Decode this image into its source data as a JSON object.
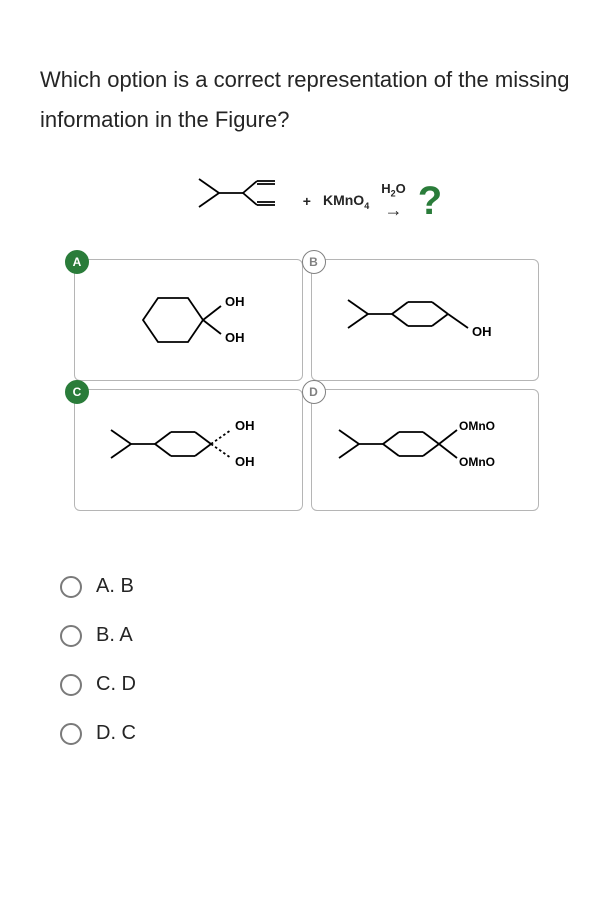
{
  "question": "Which option is a correct representation of the missing information in the Figure?",
  "reaction": {
    "plus": "+",
    "reagent_html": "KMnO<sub>4</sub>",
    "condition_html": "H<sub>2</sub>O",
    "arrow": "→",
    "unknown_mark": "?"
  },
  "options": {
    "A": {
      "letter": "A",
      "selected": true,
      "labels": {
        "top": "OH",
        "bottom": "OH"
      }
    },
    "B": {
      "letter": "B",
      "selected": false,
      "labels": {
        "top": "",
        "bottom": "OH"
      }
    },
    "C": {
      "letter": "C",
      "selected": true,
      "labels": {
        "top": "OH",
        "bottom": "OH"
      },
      "dashed_top": true,
      "dashed_bottom": true
    },
    "D": {
      "letter": "D",
      "selected": false,
      "labels": {
        "top_html": "OMnO<sub>4</sub>",
        "bottom_html": "OMnO<sub>4</sub>"
      }
    }
  },
  "answers": [
    {
      "key": "A",
      "label": "A. B"
    },
    {
      "key": "B",
      "label": "B. A"
    },
    {
      "key": "C",
      "label": "C. D"
    },
    {
      "key": "D",
      "label": "D. C"
    }
  ],
  "style": {
    "accent": "#2a7c3a",
    "border": "#b5b5b5",
    "text": "#252525"
  }
}
